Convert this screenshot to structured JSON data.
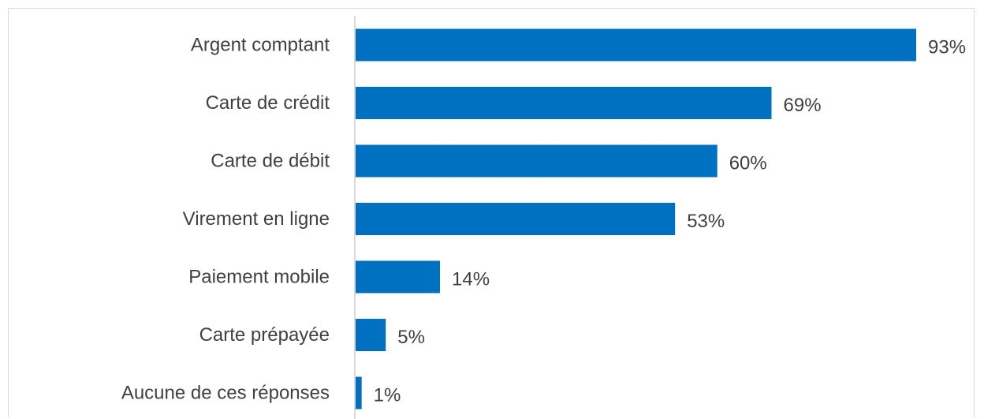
{
  "chart_data": {
    "type": "bar",
    "orientation": "horizontal",
    "categories": [
      "Argent comptant",
      "Carte de crédit",
      "Carte de débit",
      "Virement en ligne",
      "Paiement mobile",
      "Carte prépayée",
      "Aucune de ces réponses"
    ],
    "values": [
      93,
      69,
      60,
      53,
      14,
      5,
      1
    ],
    "value_labels": [
      "93%",
      "69%",
      "60%",
      "53%",
      "14%",
      "5%",
      "1%"
    ],
    "unit": "%",
    "xlim": [
      0,
      93
    ],
    "grid": false,
    "legend": "none",
    "bar_color": "#0070C0",
    "axis_color": "#d9d9d9",
    "text_color": "#404040"
  }
}
